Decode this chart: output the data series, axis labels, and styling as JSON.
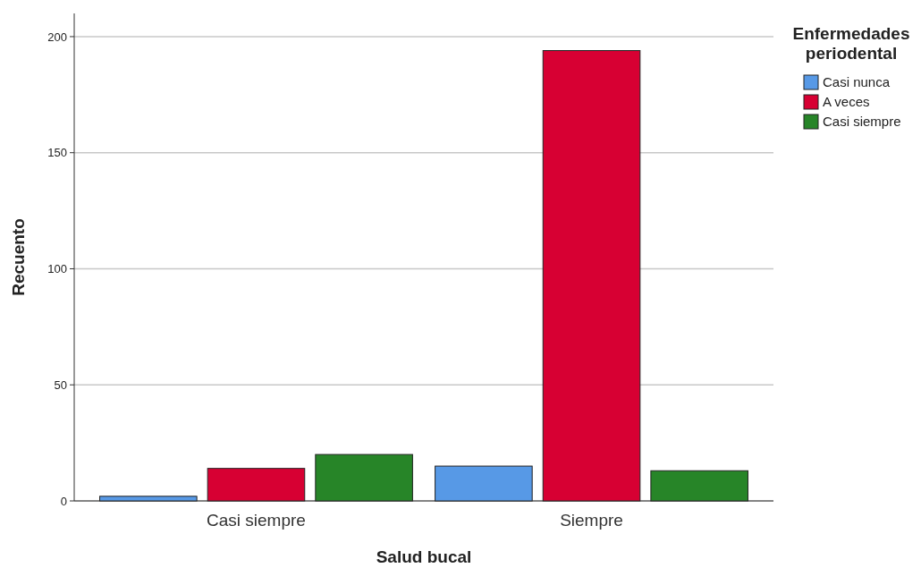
{
  "chart_data": {
    "type": "bar",
    "xlabel": "Salud bucal",
    "ylabel": "Recuento",
    "legend_title": "Enfermedades periodental",
    "categories": [
      "Casi siempre",
      "Siempre"
    ],
    "series": [
      {
        "name": "Casi nunca",
        "color": "#5799e6",
        "values": [
          2,
          15
        ]
      },
      {
        "name": "A veces",
        "color": "#d70033",
        "values": [
          14,
          194
        ]
      },
      {
        "name": "Casi siempre",
        "color": "#278528",
        "values": [
          20,
          13
        ]
      }
    ],
    "ylim": [
      0,
      210
    ],
    "yticks": [
      0,
      50,
      100,
      150,
      200
    ],
    "grid": "y",
    "legend": "top right"
  }
}
